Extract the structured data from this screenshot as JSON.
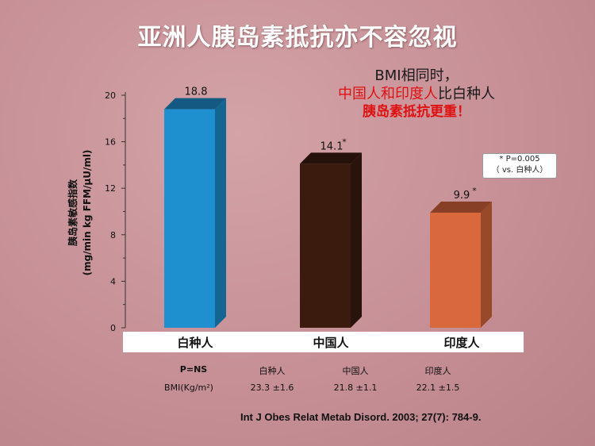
{
  "title": "亚洲人胰岛素抵抗亦不容忽视",
  "note": {
    "line1": "BMI相同时，",
    "line2_red": "中国人和印度人",
    "line2_black": "比白种人",
    "line3": "胰岛素抵抗更重！"
  },
  "pvalue_box": {
    "line1": "* P=0.005",
    "line2": "（ vs. 白种人）"
  },
  "chart_data": {
    "type": "bar",
    "categories": [
      "白种人",
      "中国人",
      "印度人"
    ],
    "values": [
      18.8,
      14.1,
      9.9
    ],
    "data_labels": [
      "18.8",
      "14.1",
      "9.9"
    ],
    "significance": [
      "",
      "*",
      "*"
    ],
    "colors": [
      "#1e90d0",
      "#3a1b0e",
      "#d9683c"
    ],
    "ylabel_line1": "胰岛素敏感指数",
    "ylabel_line2": "(mg/min kg FFM/µU/ml)",
    "xlabel": "",
    "ylim": [
      0,
      20
    ],
    "yticks": [
      0,
      4,
      8,
      12,
      16,
      20
    ],
    "grid": false
  },
  "bmi_table": {
    "p_label": "P=NS",
    "headers": [
      "白种人",
      "中国人",
      "印度人"
    ],
    "row_label": "BMI(Kg/m²)",
    "values": [
      "23.3 ±1.6",
      "21.8 ±1.1",
      "22.1 ±1.5"
    ]
  },
  "citation": "Int J Obes Relat Metab Disord. 2003; 27(7): 784-9."
}
